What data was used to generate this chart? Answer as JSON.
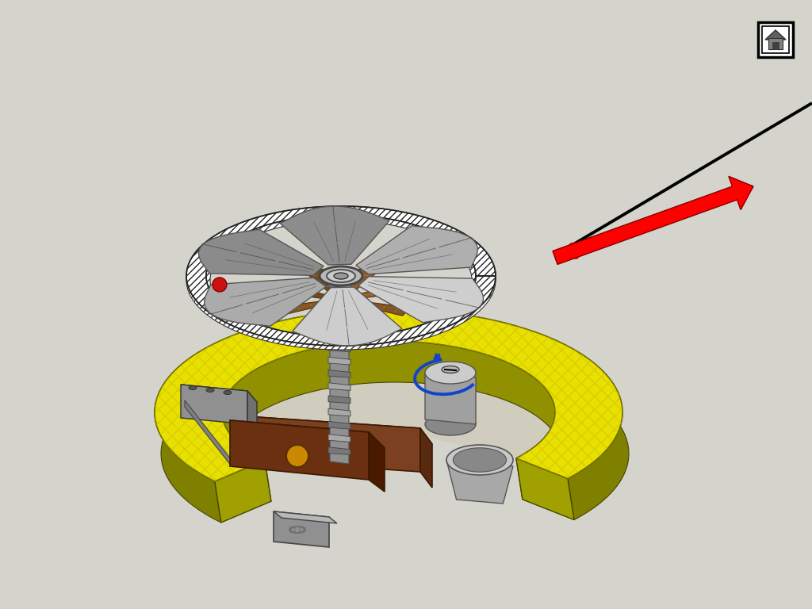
{
  "bg_color": "#d4d4cc",
  "ring_yellow": "#e8e000",
  "ring_olive": "#808000",
  "ring_mid": "#a0a000",
  "wood_color": "#b07830",
  "wood_light": "#d4a060",
  "wood_dark": "#885020",
  "metal_gray": "#a8a8a8",
  "metal_light": "#d0d0d0",
  "metal_dark": "#707070",
  "brown_dark": "#6a3010",
  "brown_mid": "#8a4820",
  "spring_light": "#b0b0b0",
  "spring_dark": "#606060",
  "blue_arrow": "#1144cc",
  "red_color": "#cc1111",
  "black": "#111111",
  "white": "#ffffff",
  "hatch_gray": "#888888"
}
